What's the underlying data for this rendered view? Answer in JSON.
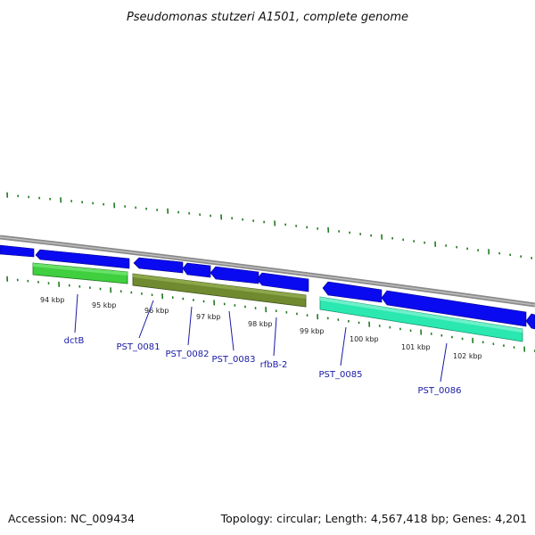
{
  "title": "Pseudomonas stutzeri A1501, complete genome",
  "accession": "Accession: NC_009434",
  "topology": "Topology: circular; Length: 4,567,418 bp; Genes: 4,201",
  "colors": {
    "backbone": "#8a8a8a",
    "cds_blue": "#0a0af0",
    "tick_green": "#1f7a1f",
    "label_blue": "#1a1aa6",
    "gene_green": "#3fcf3f",
    "gene_olive": "#6f8a2f",
    "gene_teal": "#2ae8b0"
  },
  "kbp_ticks": [
    "94 kbp",
    "95 kbp",
    "96 kbp",
    "97 kbp",
    "98 kbp",
    "99 kbp",
    "100 kbp",
    "101 kbp",
    "102 kbp"
  ],
  "genes": [
    "dctB",
    "PST_0081",
    "PST_0082",
    "PST_0083",
    "rfbB-2",
    "PST_0085",
    "PST_0086"
  ]
}
